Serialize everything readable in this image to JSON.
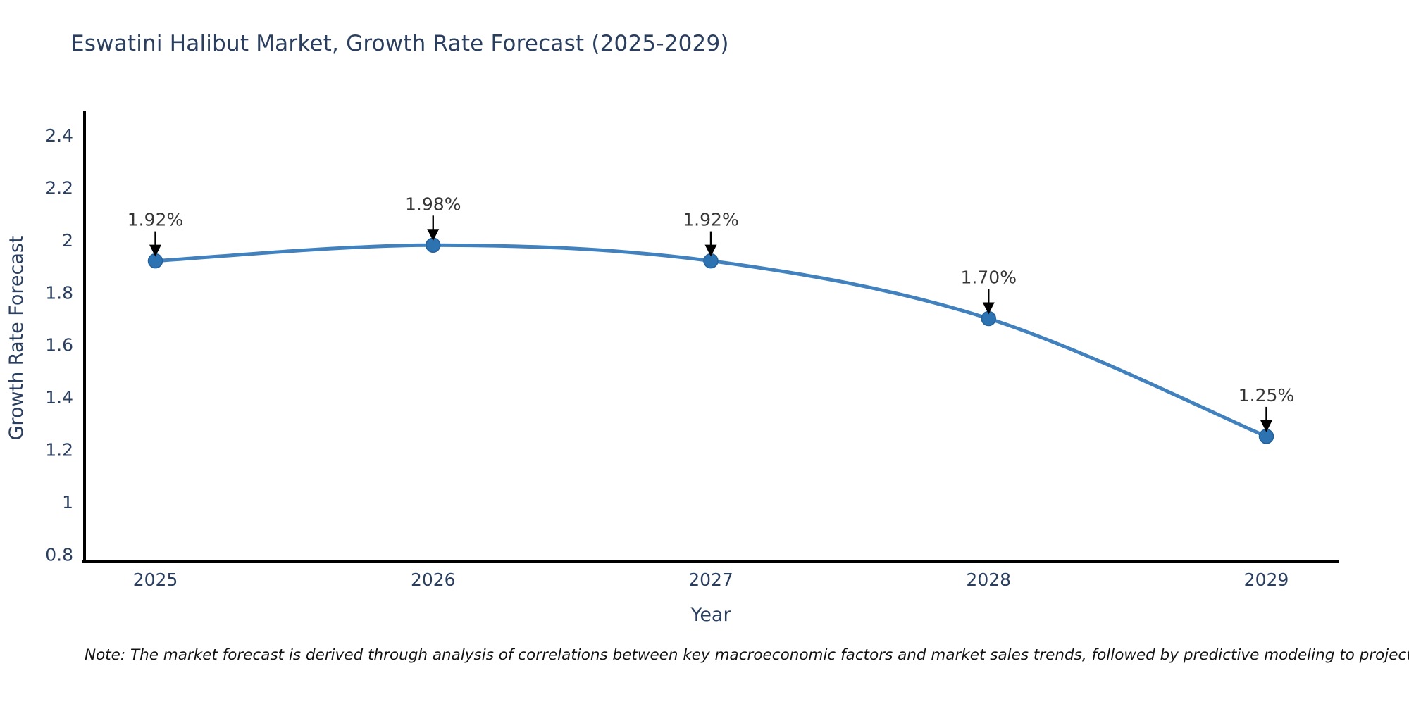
{
  "page": {
    "note": "Note: The market forecast is derived through analysis of correlations between key macroeconomic factors and market sales trends, followed by predictive modeling to project future sales"
  },
  "chart_data": {
    "type": "line",
    "title": "Eswatini Halibut Market, Growth Rate Forecast (2025-2029)",
    "xlabel": "Year",
    "ylabel": "Growth Rate Forecast",
    "x": [
      2025,
      2026,
      2027,
      2028,
      2029
    ],
    "y": [
      1.92,
      1.98,
      1.92,
      1.7,
      1.25
    ],
    "point_labels": [
      "1.92%",
      "1.98%",
      "1.92%",
      "1.70%",
      "1.25%"
    ],
    "x_tick_labels": [
      "2025",
      "2026",
      "2027",
      "2028",
      "2029"
    ],
    "y_ticks": [
      0.8,
      1.0,
      1.2,
      1.4,
      1.6,
      1.8,
      2.0,
      2.2,
      2.4
    ],
    "y_tick_labels": [
      "0.8",
      "1",
      "1.2",
      "1.4",
      "1.6",
      "1.8",
      "2",
      "2.2",
      "2.4"
    ],
    "xlim": [
      2024.74,
      2029.26
    ],
    "ylim": [
      0.766,
      2.486
    ],
    "grid": false,
    "legend": null,
    "smooth_line": true,
    "colors": {
      "line": "#4181bd",
      "marker": "#2d73b2",
      "marker_edge": "#24619c",
      "axis": "#000000",
      "title_text": "#2a3f5f",
      "axis_title_text": "#2a3f5f",
      "tick_text": "#2a3f5f",
      "annotation_text": "#363636",
      "arrow": "#000000",
      "background": "#ffffff"
    }
  }
}
